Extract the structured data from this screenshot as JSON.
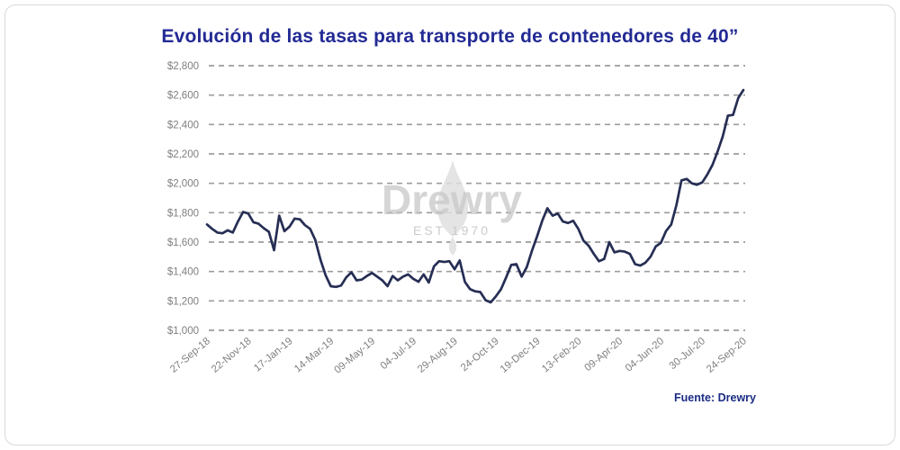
{
  "page": {
    "title": "Evolución de las tasas para transporte de contenedores de 40”",
    "source_label": "Fuente: Drewry",
    "watermark": {
      "name": "Drewry",
      "subtitle": "EST 1970"
    }
  },
  "colors": {
    "title": "#222a94",
    "line": "#262e54",
    "grid": "#9c9c9c",
    "axis_label": "#7f7f7f",
    "source": "#1a2c85",
    "watermark_text": "#c2c2c2",
    "watermark_flame": "#e0e0e0",
    "background": "#ffffff",
    "border": "#d8d8d8"
  },
  "chart_data": {
    "type": "line",
    "title": "Evolución de las tasas para transporte de contenedores de 40”",
    "xlabel": "",
    "ylabel": "",
    "grid": "horizontal-dashed",
    "legend": null,
    "y_axis": {
      "min": 1000,
      "max": 2800,
      "step": 200,
      "prefix": "$"
    },
    "x_axis": {
      "labels": [
        "27-Sep-18",
        "22-Nov-18",
        "17-Jan-19",
        "14-Mar-19",
        "09-May-19",
        "04-Jul-19",
        "29-Aug-19",
        "24-Oct-19",
        "19-Dec-19",
        "13-Feb-20",
        "09-Apr-20",
        "04-Jun-20",
        "30-Jul-20",
        "24-Sep-20"
      ],
      "label_every_n_points": 8
    },
    "values": [
      1720,
      1690,
      1665,
      1660,
      1680,
      1665,
      1740,
      1805,
      1795,
      1735,
      1725,
      1695,
      1670,
      1545,
      1780,
      1675,
      1705,
      1760,
      1755,
      1715,
      1690,
      1615,
      1480,
      1375,
      1300,
      1295,
      1305,
      1360,
      1395,
      1340,
      1345,
      1370,
      1390,
      1365,
      1340,
      1300,
      1370,
      1340,
      1365,
      1380,
      1350,
      1330,
      1380,
      1325,
      1435,
      1470,
      1465,
      1470,
      1415,
      1475,
      1330,
      1280,
      1265,
      1260,
      1205,
      1190,
      1230,
      1280,
      1360,
      1445,
      1450,
      1365,
      1430,
      1540,
      1640,
      1745,
      1830,
      1780,
      1795,
      1740,
      1730,
      1745,
      1690,
      1610,
      1575,
      1520,
      1470,
      1485,
      1600,
      1530,
      1540,
      1535,
      1520,
      1450,
      1440,
      1460,
      1500,
      1570,
      1595,
      1675,
      1720,
      1850,
      2020,
      2030,
      2000,
      1990,
      2005,
      2060,
      2125,
      2215,
      2320,
      2460,
      2465,
      2580,
      2635
    ]
  }
}
